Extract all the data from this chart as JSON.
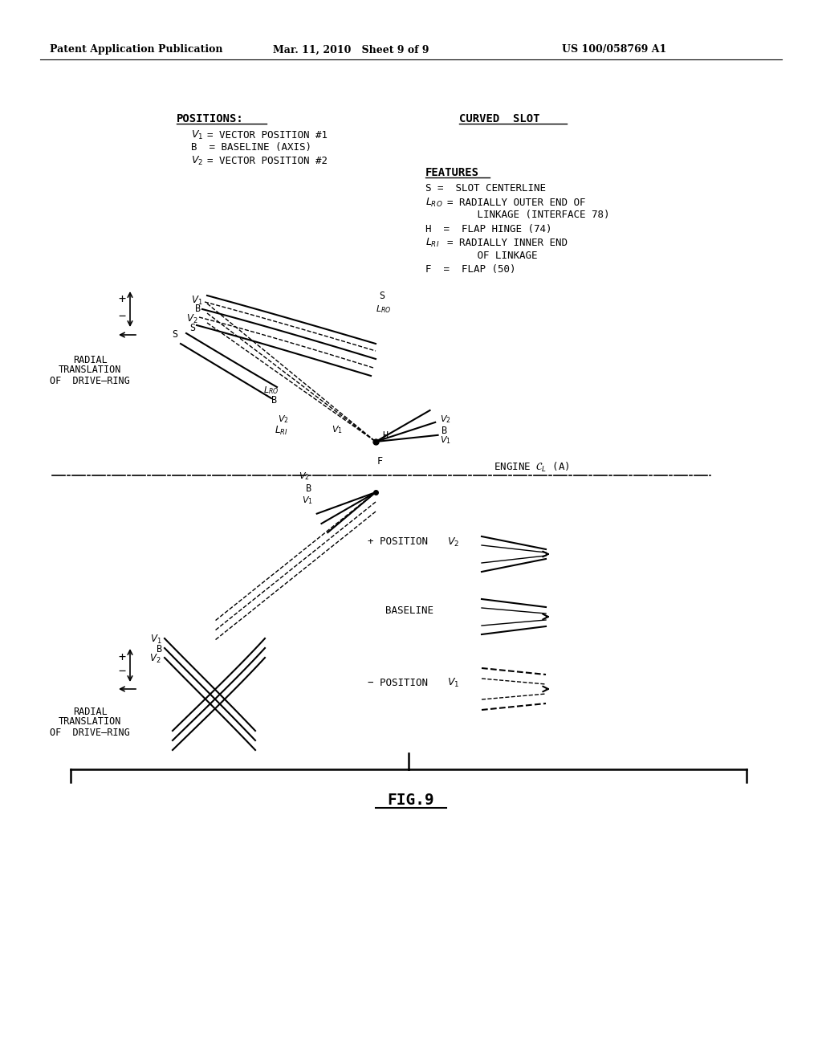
{
  "bg_color": "#ffffff",
  "fig_title": "FIG.9",
  "header_left": "Patent Application Publication",
  "header_mid": "Mar. 11, 2010   Sheet 9 of 9",
  "header_right": "US 100/058769 A1"
}
